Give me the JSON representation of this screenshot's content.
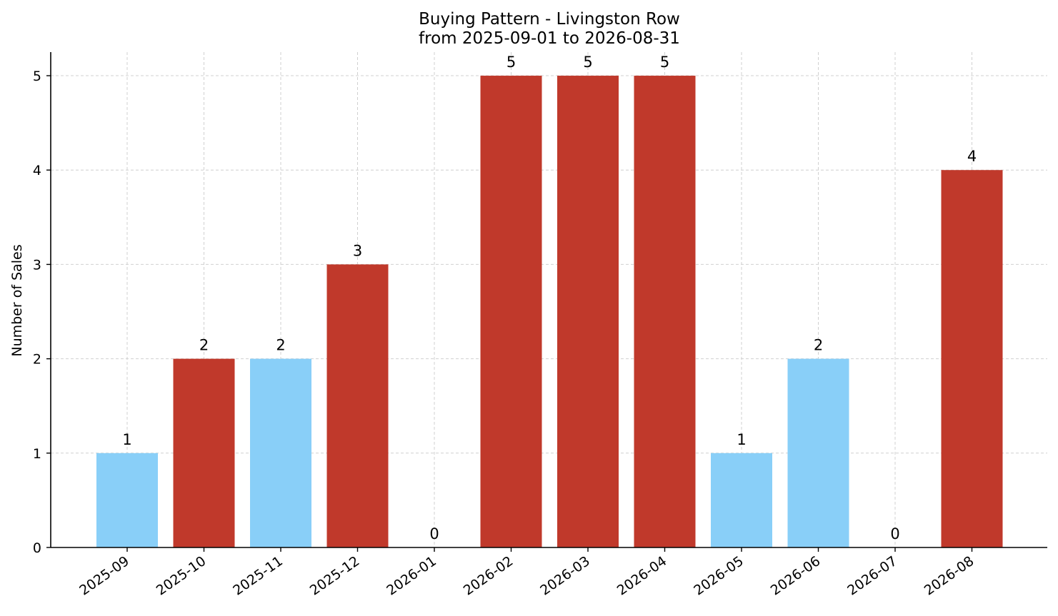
{
  "chart_data": {
    "type": "bar",
    "title": "Buying Pattern - Livingston Row",
    "subtitle": "from 2025-09-01 to 2026-08-31",
    "xlabel": "",
    "ylabel": "Number of Sales",
    "categories": [
      "2025-09",
      "2025-10",
      "2025-11",
      "2025-12",
      "2026-01",
      "2026-02",
      "2026-03",
      "2026-04",
      "2026-05",
      "2026-06",
      "2026-07",
      "2026-08"
    ],
    "values": [
      1,
      2,
      2,
      3,
      0,
      5,
      5,
      5,
      1,
      2,
      0,
      4
    ],
    "bar_colors": [
      "#89CFF8",
      "#C0392B",
      "#89CFF8",
      "#C0392B",
      "#89CFF8",
      "#C0392B",
      "#C0392B",
      "#C0392B",
      "#89CFF8",
      "#89CFF8",
      "#89CFF8",
      "#C0392B"
    ],
    "yticks": [
      0,
      1,
      2,
      3,
      4,
      5
    ],
    "ylim": [
      0,
      5.25
    ],
    "grid": true,
    "data_labels": true
  }
}
